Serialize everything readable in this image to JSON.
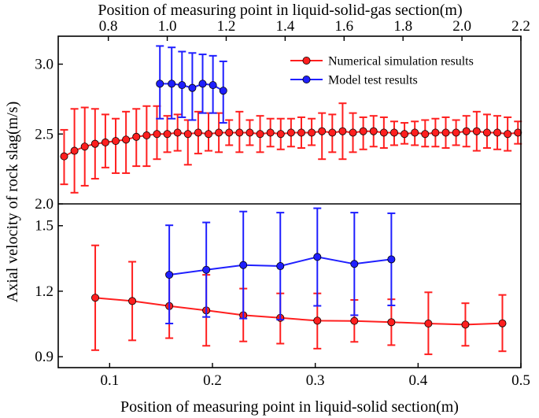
{
  "chart_data": [
    {
      "type": "scatter",
      "panel": "top",
      "title": "",
      "xlabel": "Position of measuring point in liquid-solid-gas section(m)",
      "x_axis_position": "top",
      "ylabel": "Axial velocity of rock slag(m/s)",
      "xlim": [
        0.63,
        2.2
      ],
      "ylim": [
        2.0,
        3.2
      ],
      "xticks": [
        "0.8",
        "1.0",
        "1.2",
        "1.4",
        "1.6",
        "1.8",
        "2.0",
        "2.2"
      ],
      "yticks": [
        "2.0",
        "2.5",
        "3.0"
      ],
      "legend_position": "top-right",
      "series": [
        {
          "name": "Numerical simulation results",
          "color": "#ff1f1f",
          "x": [
            0.65,
            0.685,
            0.72,
            0.755,
            0.79,
            0.825,
            0.86,
            0.895,
            0.93,
            0.965,
            1.0,
            1.035,
            1.07,
            1.105,
            1.14,
            1.175,
            1.21,
            1.245,
            1.28,
            1.315,
            1.35,
            1.385,
            1.42,
            1.455,
            1.49,
            1.525,
            1.56,
            1.595,
            1.63,
            1.665,
            1.7,
            1.735,
            1.77,
            1.805,
            1.84,
            1.875,
            1.91,
            1.945,
            1.98,
            2.015,
            2.05,
            2.085,
            2.12,
            2.155,
            2.19
          ],
          "y": [
            2.34,
            2.38,
            2.41,
            2.43,
            2.44,
            2.45,
            2.46,
            2.48,
            2.49,
            2.5,
            2.5,
            2.51,
            2.5,
            2.51,
            2.5,
            2.51,
            2.51,
            2.51,
            2.51,
            2.5,
            2.51,
            2.5,
            2.51,
            2.51,
            2.51,
            2.52,
            2.51,
            2.52,
            2.51,
            2.52,
            2.52,
            2.51,
            2.51,
            2.5,
            2.51,
            2.5,
            2.51,
            2.51,
            2.51,
            2.52,
            2.52,
            2.51,
            2.51,
            2.5,
            2.51
          ],
          "err_upper": [
            2.53,
            2.68,
            2.69,
            2.68,
            2.64,
            2.61,
            2.66,
            2.68,
            2.7,
            2.7,
            2.63,
            2.64,
            2.6,
            2.66,
            2.65,
            2.65,
            2.6,
            2.66,
            2.6,
            2.63,
            2.61,
            2.61,
            2.61,
            2.62,
            2.61,
            2.65,
            2.64,
            2.72,
            2.65,
            2.62,
            2.63,
            2.62,
            2.59,
            2.58,
            2.59,
            2.6,
            2.61,
            2.62,
            2.6,
            2.63,
            2.66,
            2.64,
            2.63,
            2.62,
            2.59
          ],
          "err_lower": [
            2.14,
            2.08,
            2.13,
            2.18,
            2.26,
            2.22,
            2.22,
            2.27,
            2.27,
            2.32,
            2.37,
            2.38,
            2.28,
            2.36,
            2.38,
            2.37,
            2.42,
            2.37,
            2.42,
            2.37,
            2.41,
            2.39,
            2.41,
            2.4,
            2.42,
            2.32,
            2.37,
            2.32,
            2.37,
            2.39,
            2.41,
            2.4,
            2.42,
            2.43,
            2.42,
            2.41,
            2.41,
            2.4,
            2.42,
            2.41,
            2.38,
            2.4,
            2.39,
            2.38,
            2.43
          ]
        },
        {
          "name": "Model test results",
          "color": "#1f1fff",
          "x": [
            0.975,
            1.015,
            1.05,
            1.085,
            1.12,
            1.155,
            1.19
          ],
          "y": [
            2.86,
            2.86,
            2.85,
            2.83,
            2.86,
            2.85,
            2.81
          ],
          "err_upper": [
            3.13,
            3.12,
            3.09,
            3.08,
            3.07,
            3.06,
            3.02
          ],
          "err_lower": [
            2.61,
            2.61,
            2.62,
            2.6,
            2.65,
            2.65,
            2.58
          ]
        }
      ]
    },
    {
      "type": "scatter",
      "panel": "bottom",
      "title": "",
      "xlabel": "Position of measuring point in liquid-solid section(m)",
      "x_axis_position": "bottom",
      "ylabel": "Axial velocity of rock slag(m/s)",
      "xlim": [
        0.05,
        0.5
      ],
      "ylim": [
        0.85,
        1.6
      ],
      "xticks": [
        "0.1",
        "0.2",
        "0.3",
        "0.4",
        "0.5"
      ],
      "yticks": [
        "0.9",
        "1.2",
        "1.5"
      ],
      "series": [
        {
          "name": "Numerical simulation results",
          "color": "#ff1f1f",
          "x": [
            0.086,
            0.122,
            0.158,
            0.194,
            0.23,
            0.266,
            0.302,
            0.338,
            0.374,
            0.41,
            0.446,
            0.482
          ],
          "y": [
            1.17,
            1.155,
            1.132,
            1.112,
            1.09,
            1.078,
            1.065,
            1.064,
            1.058,
            1.052,
            1.047,
            1.053
          ],
          "err_upper": [
            1.41,
            1.335,
            1.28,
            1.275,
            1.212,
            1.19,
            1.19,
            1.16,
            1.163,
            1.195,
            1.145,
            1.183
          ],
          "err_lower": [
            0.93,
            0.975,
            0.985,
            0.95,
            0.97,
            0.96,
            0.937,
            0.968,
            0.953,
            0.911,
            0.95,
            0.925
          ]
        },
        {
          "name": "Model test results",
          "color": "#1f1fff",
          "x": [
            0.158,
            0.194,
            0.23,
            0.266,
            0.302,
            0.338,
            0.374
          ],
          "y": [
            1.275,
            1.298,
            1.32,
            1.315,
            1.357,
            1.325,
            1.346
          ],
          "err_upper": [
            1.502,
            1.515,
            1.565,
            1.56,
            1.58,
            1.56,
            1.557
          ],
          "err_lower": [
            1.052,
            1.082,
            1.075,
            1.07,
            1.133,
            1.09,
            1.135
          ]
        }
      ]
    }
  ]
}
